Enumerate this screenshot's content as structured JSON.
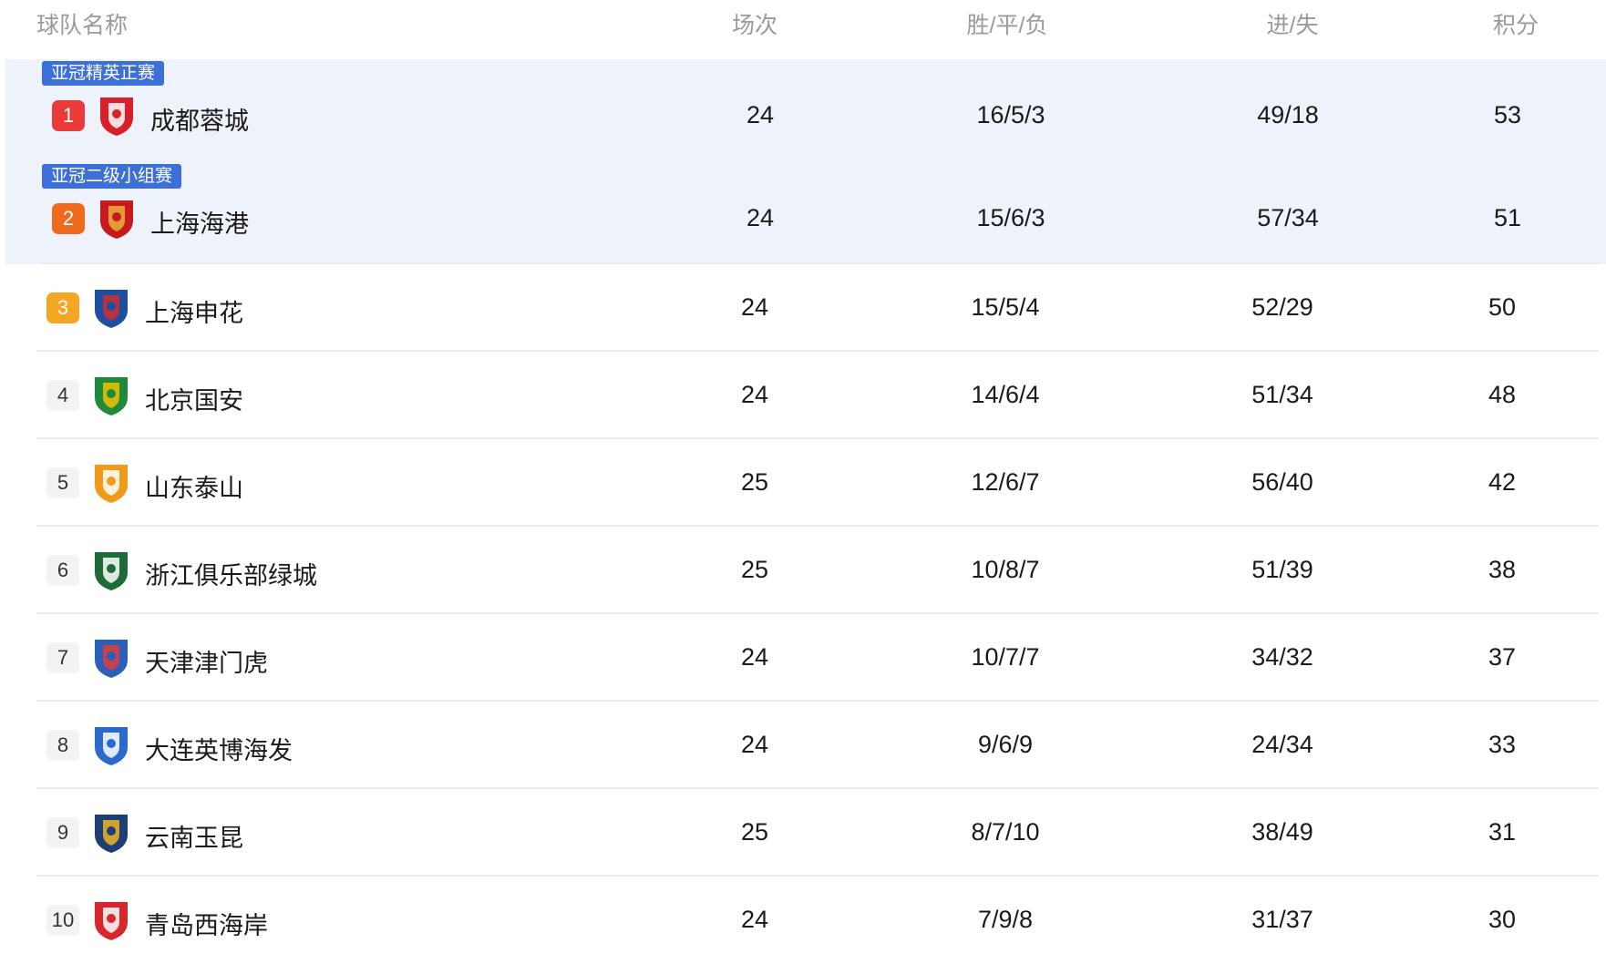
{
  "header": {
    "name": "球队名称",
    "played": "场次",
    "wdl": "胜/平/负",
    "gf_ga": "进/失",
    "points": "积分"
  },
  "colors": {
    "highlight_bg": "#eef2fb",
    "tag_bg": "#3d6fd9",
    "rank1": "#ea3a3a",
    "rank2": "#f06a1d",
    "rank3": "#f5a623"
  },
  "rows": [
    {
      "rank": "1",
      "tag": "亚冠精英正赛",
      "team": "成都蓉城",
      "logo": "chengdu-rongcheng-logo",
      "played": "24",
      "wdl": "16/5/3",
      "gf_ga": "49/18",
      "points": "53"
    },
    {
      "rank": "2",
      "tag": "亚冠二级小组赛",
      "team": "上海海港",
      "logo": "shanghai-port-logo",
      "played": "24",
      "wdl": "15/6/3",
      "gf_ga": "57/34",
      "points": "51"
    },
    {
      "rank": "3",
      "team": "上海申花",
      "logo": "shanghai-shenhua-logo",
      "played": "24",
      "wdl": "15/5/4",
      "gf_ga": "52/29",
      "points": "50"
    },
    {
      "rank": "4",
      "team": "北京国安",
      "logo": "beijing-guoan-logo",
      "played": "24",
      "wdl": "14/6/4",
      "gf_ga": "51/34",
      "points": "48"
    },
    {
      "rank": "5",
      "team": "山东泰山",
      "logo": "shandong-taishan-logo",
      "played": "25",
      "wdl": "12/6/7",
      "gf_ga": "56/40",
      "points": "42"
    },
    {
      "rank": "6",
      "team": "浙江俱乐部绿城",
      "logo": "zhejiang-logo",
      "played": "25",
      "wdl": "10/8/7",
      "gf_ga": "51/39",
      "points": "38"
    },
    {
      "rank": "7",
      "team": "天津津门虎",
      "logo": "tianjin-jinmen-tiger-logo",
      "played": "24",
      "wdl": "10/7/7",
      "gf_ga": "34/32",
      "points": "37"
    },
    {
      "rank": "8",
      "team": "大连英博海发",
      "logo": "dalian-yingbo-logo",
      "played": "24",
      "wdl": "9/6/9",
      "gf_ga": "24/34",
      "points": "33"
    },
    {
      "rank": "9",
      "team": "云南玉昆",
      "logo": "yunnan-yukun-logo",
      "played": "25",
      "wdl": "8/7/10",
      "gf_ga": "38/49",
      "points": "31"
    },
    {
      "rank": "10",
      "team": "青岛西海岸",
      "logo": "qingdao-west-coast-logo",
      "played": "24",
      "wdl": "7/9/8",
      "gf_ga": "31/37",
      "points": "30"
    }
  ]
}
